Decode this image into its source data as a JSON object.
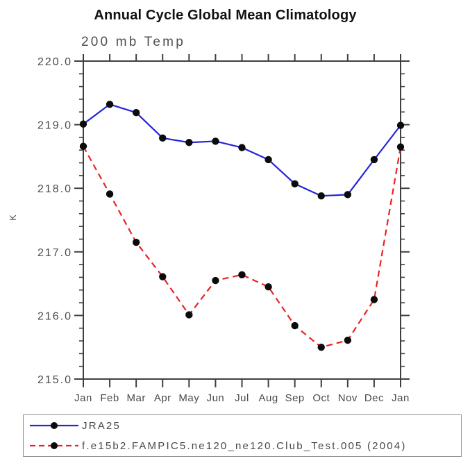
{
  "header": {
    "title": "Annual Cycle Global Mean Climatology",
    "subtitle": "200 mb Temp"
  },
  "chart_data": {
    "type": "line",
    "title": "Annual Cycle Global Mean Climatology",
    "subtitle": "200 mb Temp",
    "xlabel": "",
    "ylabel": "K",
    "x_labels": [
      "Jan",
      "Feb",
      "Mar",
      "Apr",
      "May",
      "Jun",
      "Jul",
      "Aug",
      "Sep",
      "Oct",
      "Nov",
      "Dec",
      "Jan"
    ],
    "ylim": [
      215.0,
      220.0
    ],
    "yticks": [
      220,
      219,
      218,
      217,
      216,
      215
    ],
    "ytick_labels": [
      "220.0",
      "219.0",
      "218.0",
      "217.0",
      "216.0",
      "215.0"
    ],
    "minor_tick_step": 0.2,
    "grid": false,
    "legend_position": "bottom",
    "axis_color": "#3f3f3f",
    "label_color": "#4a4a4a",
    "series": [
      {
        "name": "JRA25",
        "style": "solid",
        "color": "#2424d6",
        "marker": "circle",
        "marker_color": "#0b0b0b",
        "values": [
          219.01,
          219.32,
          219.19,
          218.79,
          218.72,
          218.74,
          218.64,
          218.45,
          218.07,
          217.88,
          217.9,
          218.45,
          218.99
        ]
      },
      {
        "name": "f.e15b2.FAMPIC5.ne120_ne120.Club_Test.005 (2004)",
        "style": "dashed",
        "color": "#ea2222",
        "marker": "circle",
        "marker_color": "#0b0b0b",
        "values": [
          218.66,
          217.91,
          217.15,
          216.61,
          216.01,
          216.55,
          216.64,
          216.45,
          215.84,
          215.5,
          215.61,
          216.25,
          218.65
        ]
      }
    ]
  }
}
